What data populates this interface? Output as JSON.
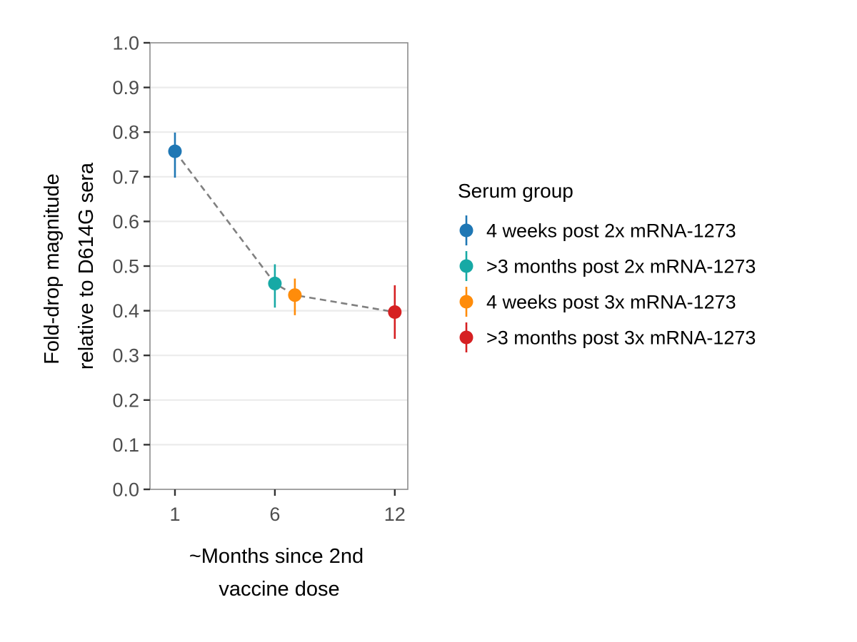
{
  "chart_data": {
    "type": "scatter",
    "ylabel_lines": [
      "Fold-drop magnitude",
      "relative to D614G sera"
    ],
    "xlabel_lines": [
      "~Months since 2nd",
      "vaccine dose"
    ],
    "xlim": [
      -0.25,
      12.65
    ],
    "ylim": [
      0,
      1
    ],
    "x_ticks": [
      1,
      6,
      12
    ],
    "x_tick_labels": [
      "1",
      "6",
      "12"
    ],
    "y_ticks": [
      0.0,
      0.1,
      0.2,
      0.3,
      0.4,
      0.5,
      0.6,
      0.7,
      0.8,
      0.9,
      1.0
    ],
    "y_tick_labels": [
      "0.0",
      "0.1",
      "0.2",
      "0.3",
      "0.4",
      "0.5",
      "0.6",
      "0.7",
      "0.8",
      "0.9",
      "1.0"
    ],
    "grid": "horizontal",
    "trend_line": {
      "style": "dashed",
      "color": "#808080"
    },
    "legend": {
      "title": "Serum group",
      "placement": "right"
    },
    "series": [
      {
        "name": "4 weeks post 2x mRNA-1273",
        "color": "#1f77b4",
        "x": 1,
        "y": 0.757,
        "ymin": 0.698,
        "ymax": 0.799
      },
      {
        "name": ">3 months post 2x mRNA-1273",
        "color": "#17a9a5",
        "x": 6,
        "y": 0.461,
        "ymin": 0.407,
        "ymax": 0.504
      },
      {
        "name": "4 weeks post 3x mRNA-1273",
        "color": "#ff8c0a",
        "x": 7,
        "y": 0.435,
        "ymin": 0.39,
        "ymax": 0.472
      },
      {
        "name": ">3 months post 3x mRNA-1273",
        "color": "#d62022",
        "x": 12,
        "y": 0.397,
        "ymin": 0.337,
        "ymax": 0.457
      }
    ]
  }
}
